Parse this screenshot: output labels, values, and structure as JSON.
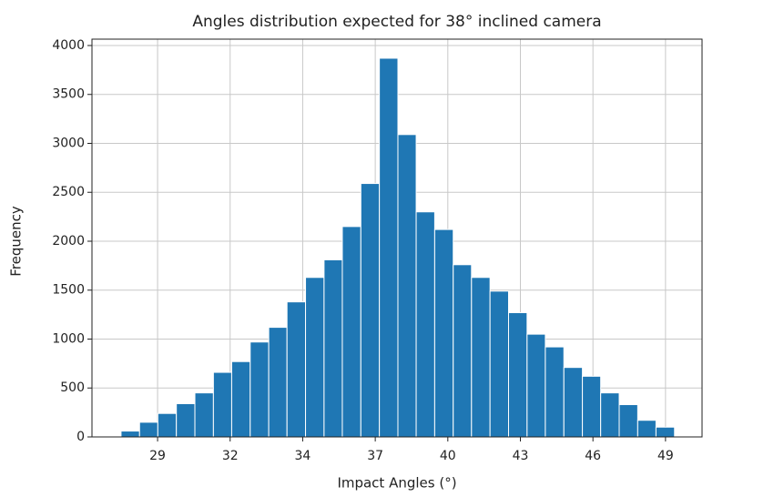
{
  "chart_data": {
    "type": "histogram",
    "title": "Angles distribution expected for 38° inclined camera",
    "xlabel": "Impact Angles (°)",
    "ylabel": "Frequency",
    "bins": [
      27.38,
      28.1,
      28.81,
      29.53,
      30.25,
      30.97,
      31.68,
      32.4,
      33.12,
      33.83,
      34.55,
      35.27,
      35.98,
      36.7,
      37.42,
      38.14,
      38.85,
      39.57,
      40.29,
      41.0,
      41.72,
      42.44,
      43.16,
      43.87,
      44.59,
      45.31,
      46.02,
      46.74,
      47.46,
      48.17,
      48.89
    ],
    "values": [
      60,
      150,
      240,
      340,
      450,
      660,
      770,
      970,
      1120,
      1380,
      1630,
      1810,
      2150,
      2590,
      3870,
      3090,
      2300,
      2120,
      1760,
      1630,
      1490,
      1270,
      1050,
      920,
      710,
      620,
      450,
      330,
      170,
      100
    ],
    "color": "#1f77b4",
    "xlim": [
      26.25,
      49.96
    ],
    "xticks": [
      {
        "value": 28.8,
        "label": "29"
      },
      {
        "value": 31.62,
        "label": "32"
      },
      {
        "value": 34.44,
        "label": "34"
      },
      {
        "value": 37.26,
        "label": "37"
      },
      {
        "value": 40.08,
        "label": "40"
      },
      {
        "value": 42.9,
        "label": "43"
      },
      {
        "value": 45.72,
        "label": "46"
      },
      {
        "value": 48.54,
        "label": "49"
      }
    ],
    "ylim": [
      0,
      4065
    ],
    "yticks": [
      0,
      500,
      1000,
      1500,
      2000,
      2500,
      3000,
      3500,
      4000
    ],
    "grid": true
  }
}
